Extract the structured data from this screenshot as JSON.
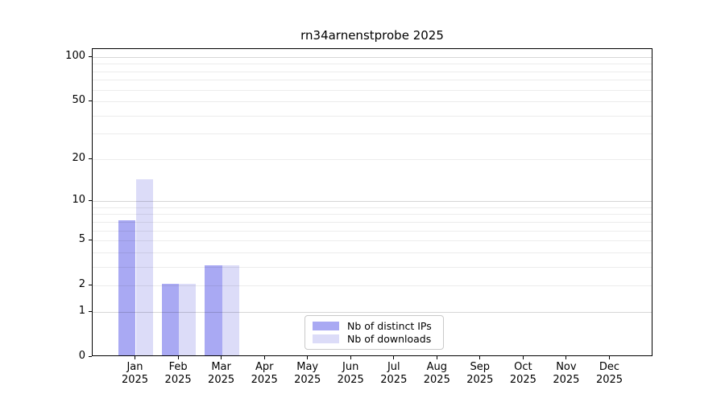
{
  "chart_data": {
    "type": "bar",
    "title": "rn34arnenstprobe 2025",
    "x_months": [
      "Jan",
      "Feb",
      "Mar",
      "Apr",
      "May",
      "Jun",
      "Jul",
      "Aug",
      "Sep",
      "Oct",
      "Nov",
      "Dec"
    ],
    "x_year": "2025",
    "series": [
      {
        "name": "Nb of distinct IPs",
        "color": "#a9a9f3",
        "values": [
          7,
          2,
          3,
          0,
          0,
          0,
          0,
          0,
          0,
          0,
          0,
          0
        ]
      },
      {
        "name": "Nb of downloads",
        "color": "#dcdcf8",
        "values": [
          14,
          2,
          3,
          0,
          0,
          0,
          0,
          0,
          0,
          0,
          0,
          0
        ]
      }
    ],
    "y_scale": "log1p",
    "y_ticks": [
      0,
      1,
      2,
      5,
      10,
      20,
      50,
      100
    ],
    "y_max": 113,
    "major_gridlines": [
      1,
      10,
      100
    ],
    "minor_gridlines": [
      2,
      3,
      4,
      5,
      6,
      7,
      8,
      9,
      20,
      30,
      40,
      50,
      60,
      70,
      80,
      90
    ],
    "grid": true,
    "legend_position": "inside-bottom-center",
    "colors": {
      "spine": "#000000",
      "major_grid": "#d6d6d6",
      "minor_grid": "#ececec",
      "legend_border": "#c9c9c9",
      "background": "#ffffff"
    }
  }
}
